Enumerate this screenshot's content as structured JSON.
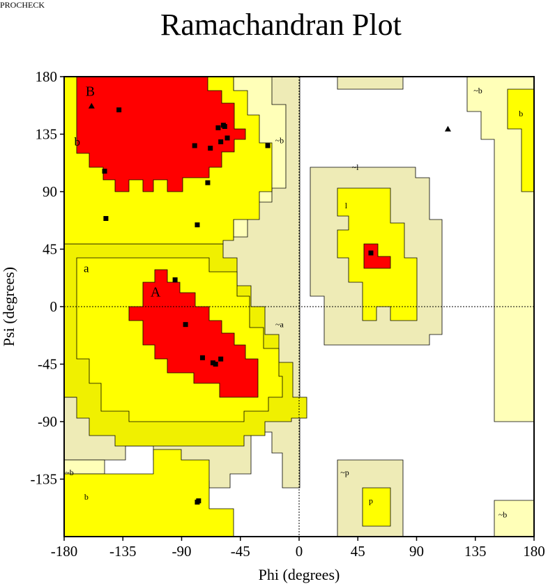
{
  "program": "PROCHECK",
  "colors": {
    "most_favoured": "#FF0000",
    "additional_allowed": "#FFFF00",
    "generously_allowed": "#F0F000",
    "generously_allowed_pale": "#EEEBB6",
    "light_allowed": "#FFFFB8",
    "disallowed": "#FFFFFF",
    "outline": "#000000"
  },
  "chart_data": {
    "type": "scatter",
    "title": "Ramachandran Plot",
    "xlabel": "Phi (degrees)",
    "ylabel": "Psi (degrees)",
    "xlim": [
      -180,
      180
    ],
    "ylim": [
      -180,
      180
    ],
    "xticks": [
      "-180",
      "-135",
      "-90",
      "-45",
      "0",
      "45",
      "90",
      "135",
      "180"
    ],
    "yticks": [
      "180",
      "135",
      "90",
      "45",
      "0",
      "-45",
      "-90",
      "-135"
    ],
    "zero_lines": true,
    "region_labels": [
      {
        "text": "B",
        "phi": -160,
        "psi": 165,
        "size": "large"
      },
      {
        "text": "b",
        "phi": -170,
        "psi": 126,
        "size": "medium"
      },
      {
        "text": "~b",
        "phi": -15,
        "psi": 128,
        "size": "small"
      },
      {
        "text": "~l",
        "phi": 43,
        "psi": 107,
        "size": "small"
      },
      {
        "text": "l",
        "phi": 36,
        "psi": 77,
        "size": "small"
      },
      {
        "text": "a",
        "phi": -163,
        "psi": 27,
        "size": "medium"
      },
      {
        "text": "A",
        "phi": -110,
        "psi": 8,
        "size": "large"
      },
      {
        "text": "~a",
        "phi": -15,
        "psi": -16,
        "size": "small"
      },
      {
        "text": "~b",
        "phi": 137,
        "psi": 167,
        "size": "small"
      },
      {
        "text": "b",
        "phi": 170,
        "psi": 149,
        "size": "small"
      },
      {
        "text": "~b",
        "phi": -176,
        "psi": -132,
        "size": "small"
      },
      {
        "text": "b",
        "phi": -163,
        "psi": -151,
        "size": "small"
      },
      {
        "text": "~p",
        "phi": 35,
        "psi": -132,
        "size": "small"
      },
      {
        "text": "p",
        "phi": 55,
        "psi": -154,
        "size": "small"
      },
      {
        "text": "~b",
        "phi": 156,
        "psi": -165,
        "size": "small"
      }
    ],
    "series": [
      {
        "marker": "square",
        "points": [
          [
            -138,
            154
          ],
          [
            -62,
            140
          ],
          [
            -58,
            142
          ],
          [
            -57,
            141
          ],
          [
            -55,
            132
          ],
          [
            -60,
            129
          ],
          [
            -68,
            124
          ],
          [
            -80,
            126
          ],
          [
            -24,
            126
          ],
          [
            -149,
            106
          ],
          [
            -70,
            97
          ],
          [
            -148,
            69
          ],
          [
            -78,
            64
          ],
          [
            55,
            42
          ],
          [
            -95,
            21
          ],
          [
            -87,
            -14
          ],
          [
            -74,
            -40
          ],
          [
            -60,
            -41
          ],
          [
            -66,
            -44
          ],
          [
            -64,
            -45
          ],
          [
            -77,
            -152
          ],
          [
            -78,
            -153
          ]
        ]
      },
      {
        "marker": "triangle",
        "points": [
          [
            -159,
            157
          ],
          [
            114,
            139
          ]
        ]
      }
    ]
  }
}
